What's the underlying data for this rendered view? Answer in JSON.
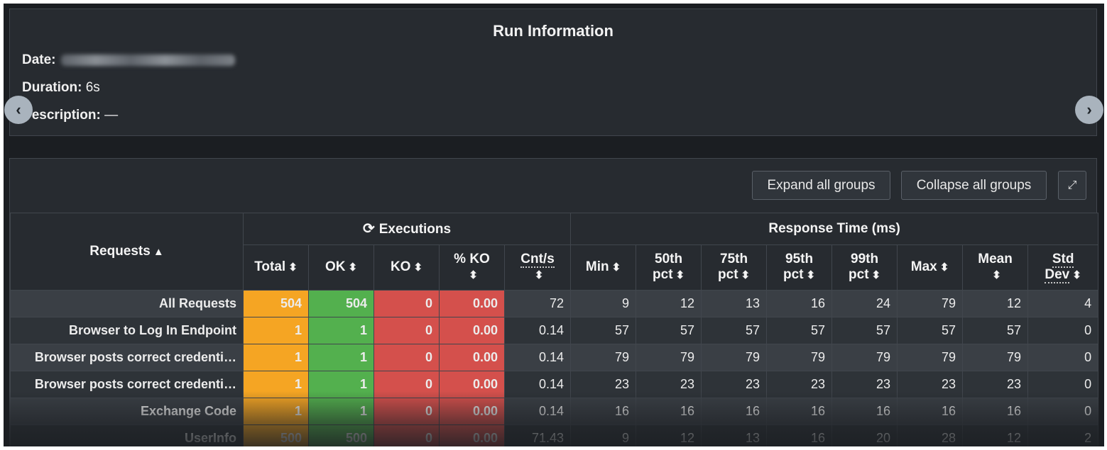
{
  "run_info": {
    "title": "Run Information",
    "date_label": "Date:",
    "duration_label": "Duration:",
    "duration_value": "6s",
    "description_label": "Description:",
    "description_value": "—"
  },
  "nav": {
    "prev": "‹",
    "next": "›"
  },
  "toolbar": {
    "expand_label": "Expand all groups",
    "collapse_label": "Collapse all groups",
    "fullscreen_icon": "⤢"
  },
  "table": {
    "requests_header": "Requests",
    "executions_header": "Executions",
    "response_header": "Response Time (ms)",
    "columns": {
      "total": "Total",
      "ok": "OK",
      "ko": "KO",
      "pko": "% KO",
      "cnts": "Cnt/s",
      "min": "Min",
      "p50a": "50th",
      "p50b": "pct",
      "p75a": "75th",
      "p75b": "pct",
      "p95a": "95th",
      "p95b": "pct",
      "p99a": "99th",
      "p99b": "pct",
      "max": "Max",
      "mean": "Mean",
      "stda": "Std",
      "stdb": "Dev"
    },
    "rows": [
      {
        "name": "All Requests",
        "total": "504",
        "ok": "504",
        "ko": "0",
        "pko": "0.00",
        "cnts": "72",
        "min": "9",
        "p50": "12",
        "p75": "13",
        "p95": "16",
        "p99": "24",
        "max": "79",
        "mean": "12",
        "std": "4"
      },
      {
        "name": "Browser to Log In Endpoint",
        "total": "1",
        "ok": "1",
        "ko": "0",
        "pko": "0.00",
        "cnts": "0.14",
        "min": "57",
        "p50": "57",
        "p75": "57",
        "p95": "57",
        "p99": "57",
        "max": "57",
        "mean": "57",
        "std": "0"
      },
      {
        "name": "Browser posts correct credenti…",
        "total": "1",
        "ok": "1",
        "ko": "0",
        "pko": "0.00",
        "cnts": "0.14",
        "min": "79",
        "p50": "79",
        "p75": "79",
        "p95": "79",
        "p99": "79",
        "max": "79",
        "mean": "79",
        "std": "0"
      },
      {
        "name": "Browser posts correct credenti…",
        "total": "1",
        "ok": "1",
        "ko": "0",
        "pko": "0.00",
        "cnts": "0.14",
        "min": "23",
        "p50": "23",
        "p75": "23",
        "p95": "23",
        "p99": "23",
        "max": "23",
        "mean": "23",
        "std": "0"
      },
      {
        "name": "Exchange Code",
        "total": "1",
        "ok": "1",
        "ko": "0",
        "pko": "0.00",
        "cnts": "0.14",
        "min": "16",
        "p50": "16",
        "p75": "16",
        "p95": "16",
        "p99": "16",
        "max": "16",
        "mean": "16",
        "std": "0"
      },
      {
        "name": "UserInfo",
        "total": "500",
        "ok": "500",
        "ko": "0",
        "pko": "0.00",
        "cnts": "71.43",
        "min": "9",
        "p50": "12",
        "p75": "13",
        "p95": "16",
        "p99": "20",
        "max": "28",
        "mean": "12",
        "std": "2"
      }
    ]
  }
}
